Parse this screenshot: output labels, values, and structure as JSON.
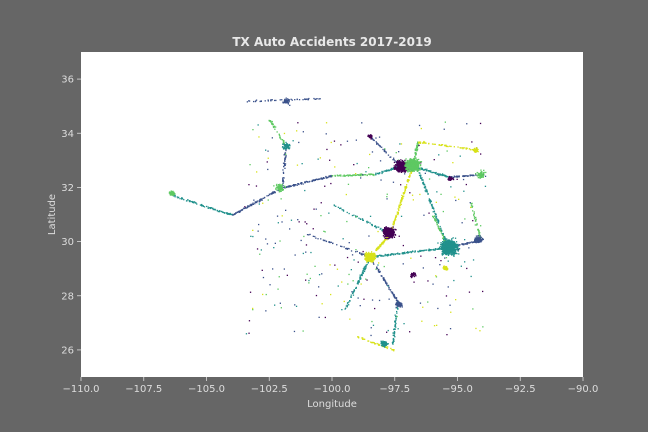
{
  "chart_data": {
    "type": "scatter",
    "title": "TX Auto Accidents 2017-2019",
    "xlabel": "Longitude",
    "ylabel": "Latitude",
    "xlim": [
      -110.0,
      -90.0
    ],
    "ylim": [
      25.0,
      37.0
    ],
    "x_ticks": [
      -110.0,
      -107.5,
      -105.0,
      -102.5,
      -100.0,
      -97.5,
      -95.0,
      -92.5,
      -90.0
    ],
    "x_tick_labels": [
      "−110.0",
      "−107.5",
      "−105.0",
      "−102.5",
      "−100.0",
      "−97.5",
      "−95.0",
      "−92.5",
      "−90.0"
    ],
    "y_ticks": [
      26,
      28,
      30,
      32,
      34,
      36
    ],
    "y_tick_labels": [
      "26",
      "28",
      "30",
      "32",
      "34",
      "36"
    ],
    "grid": false,
    "legend": "none",
    "colors": {
      "background": "#666666",
      "plot_area": "#ffffff",
      "palette": [
        "#440154",
        "#3b528b",
        "#21918c",
        "#5ec962",
        "#d8e219"
      ]
    },
    "clusters": [
      {
        "lon": -97.25,
        "lat": 32.8,
        "count": 180,
        "spread": 0.22,
        "color": "#440154"
      },
      {
        "lon": -96.8,
        "lat": 32.85,
        "count": 220,
        "spread": 0.25,
        "color": "#5ec962"
      },
      {
        "lon": -95.35,
        "lat": 29.8,
        "count": 260,
        "spread": 0.3,
        "color": "#21918c"
      },
      {
        "lon": -97.75,
        "lat": 30.35,
        "count": 170,
        "spread": 0.2,
        "color": "#440154"
      },
      {
        "lon": -98.5,
        "lat": 29.45,
        "count": 140,
        "spread": 0.18,
        "color": "#d8e219"
      },
      {
        "lon": -106.4,
        "lat": 31.8,
        "count": 60,
        "spread": 0.08,
        "color": "#5ec962"
      },
      {
        "lon": -97.95,
        "lat": 26.25,
        "count": 50,
        "spread": 0.12,
        "color": "#21918c"
      },
      {
        "lon": -94.2,
        "lat": 30.1,
        "count": 30,
        "spread": 0.15,
        "color": "#3b528b"
      },
      {
        "lon": -101.85,
        "lat": 33.55,
        "count": 20,
        "spread": 0.15,
        "color": "#21918c"
      },
      {
        "lon": -101.85,
        "lat": 35.2,
        "count": 15,
        "spread": 0.12,
        "color": "#3b528b"
      },
      {
        "lon": -102.1,
        "lat": 32.0,
        "count": 25,
        "spread": 0.15,
        "color": "#5ec962"
      },
      {
        "lon": -97.35,
        "lat": 27.7,
        "count": 20,
        "spread": 0.12,
        "color": "#3b528b"
      },
      {
        "lon": -94.1,
        "lat": 32.5,
        "count": 20,
        "spread": 0.15,
        "color": "#5ec962"
      },
      {
        "lon": -95.3,
        "lat": 32.35,
        "count": 15,
        "spread": 0.1,
        "color": "#440154"
      },
      {
        "lon": -94.3,
        "lat": 33.4,
        "count": 15,
        "spread": 0.1,
        "color": "#d8e219"
      },
      {
        "lon": -96.8,
        "lat": 28.8,
        "count": 10,
        "spread": 0.1,
        "color": "#440154"
      },
      {
        "lon": -95.5,
        "lat": 29.05,
        "count": 20,
        "spread": 0.1,
        "color": "#d8e219"
      },
      {
        "lon": -98.5,
        "lat": 33.9,
        "count": 12,
        "spread": 0.08,
        "color": "#440154"
      }
    ],
    "roads": [
      {
        "from": [
          -106.3,
          31.7
        ],
        "to": [
          -104.0,
          31.0
        ],
        "count": 30,
        "color": "#21918c"
      },
      {
        "from": [
          -104.0,
          31.0
        ],
        "to": [
          -102.0,
          32.0
        ],
        "count": 30,
        "color": "#3b528b"
      },
      {
        "from": [
          -102.0,
          32.0
        ],
        "to": [
          -100.0,
          32.45
        ],
        "count": 35,
        "color": "#3b528b"
      },
      {
        "from": [
          -100.0,
          32.45
        ],
        "to": [
          -98.3,
          32.5
        ],
        "count": 25,
        "color": "#5ec962"
      },
      {
        "from": [
          -98.3,
          32.5
        ],
        "to": [
          -97.3,
          32.8
        ],
        "count": 20,
        "color": "#21918c"
      },
      {
        "from": [
          -96.8,
          32.8
        ],
        "to": [
          -95.3,
          32.4
        ],
        "count": 25,
        "color": "#21918c"
      },
      {
        "from": [
          -95.3,
          32.4
        ],
        "to": [
          -94.0,
          32.5
        ],
        "count": 20,
        "color": "#3b528b"
      },
      {
        "from": [
          -96.8,
          32.8
        ],
        "to": [
          -97.7,
          30.3
        ],
        "count": 45,
        "color": "#d8e219"
      },
      {
        "from": [
          -97.7,
          30.3
        ],
        "to": [
          -98.5,
          29.45
        ],
        "count": 25,
        "color": "#d8e219"
      },
      {
        "from": [
          -98.5,
          29.45
        ],
        "to": [
          -95.4,
          29.8
        ],
        "count": 45,
        "color": "#21918c"
      },
      {
        "from": [
          -95.4,
          29.8
        ],
        "to": [
          -94.0,
          30.1
        ],
        "count": 25,
        "color": "#3b528b"
      },
      {
        "from": [
          -95.4,
          29.8
        ],
        "to": [
          -96.6,
          32.7
        ],
        "count": 40,
        "color": "#21918c"
      },
      {
        "from": [
          -98.5,
          29.45
        ],
        "to": [
          -99.5,
          27.5
        ],
        "count": 30,
        "color": "#21918c"
      },
      {
        "from": [
          -98.5,
          29.45
        ],
        "to": [
          -97.4,
          27.8
        ],
        "count": 25,
        "color": "#3b528b"
      },
      {
        "from": [
          -97.4,
          27.8
        ],
        "to": [
          -97.6,
          26.2
        ],
        "count": 20,
        "color": "#21918c"
      },
      {
        "from": [
          -99.0,
          26.5
        ],
        "to": [
          -97.5,
          26.0
        ],
        "count": 15,
        "color": "#d8e219"
      },
      {
        "from": [
          -96.8,
          32.8
        ],
        "to": [
          -96.6,
          33.7
        ],
        "count": 20,
        "color": "#5ec962"
      },
      {
        "from": [
          -96.6,
          33.7
        ],
        "to": [
          -94.2,
          33.4
        ],
        "count": 20,
        "color": "#d8e219"
      },
      {
        "from": [
          -97.3,
          32.8
        ],
        "to": [
          -98.5,
          33.9
        ],
        "count": 15,
        "color": "#3b528b"
      },
      {
        "from": [
          -102.5,
          34.5
        ],
        "to": [
          -101.85,
          33.55
        ],
        "count": 15,
        "color": "#5ec962"
      },
      {
        "from": [
          -101.85,
          33.55
        ],
        "to": [
          -102.0,
          32.0
        ],
        "count": 15,
        "color": "#3b528b"
      },
      {
        "from": [
          -103.5,
          35.2
        ],
        "to": [
          -100.5,
          35.3
        ],
        "count": 15,
        "color": "#3b528b"
      },
      {
        "from": [
          -100.0,
          31.4
        ],
        "to": [
          -97.7,
          30.3
        ],
        "count": 20,
        "color": "#21918c"
      },
      {
        "from": [
          -101.0,
          30.3
        ],
        "to": [
          -98.5,
          29.45
        ],
        "count": 15,
        "color": "#3b528b"
      },
      {
        "from": [
          -96.0,
          31.0
        ],
        "to": [
          -95.4,
          29.8
        ],
        "count": 15,
        "color": "#5ec962"
      },
      {
        "from": [
          -94.5,
          31.5
        ],
        "to": [
          -94.1,
          30.1
        ],
        "count": 15,
        "color": "#5ec962"
      }
    ],
    "scatter_noise": {
      "count": 300,
      "lon_range": [
        -103.5,
        -93.8
      ],
      "lat_range": [
        26.5,
        34.5
      ]
    }
  }
}
